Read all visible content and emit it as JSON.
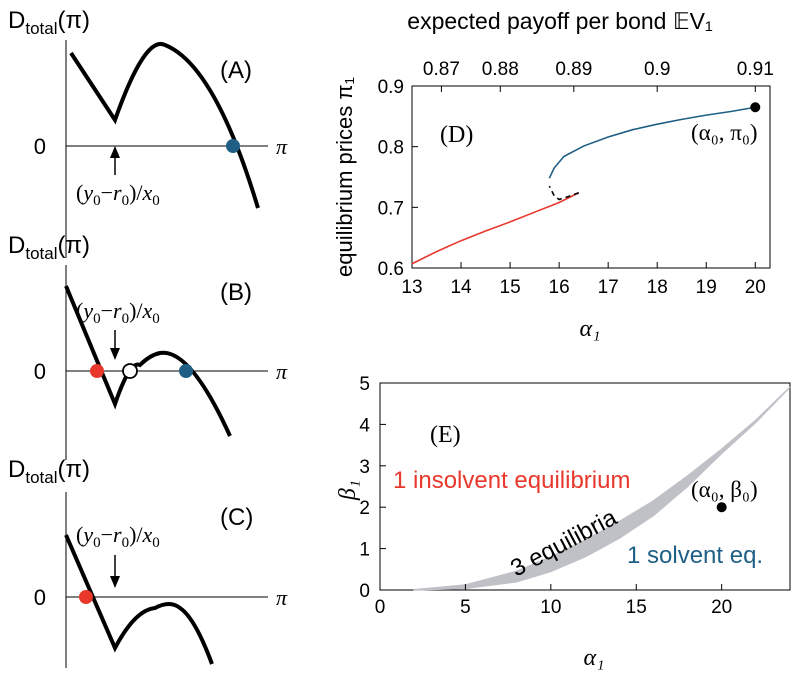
{
  "panels": {
    "A": {
      "label": "(A)",
      "ylabel_main": "D",
      "ylabel_sub": "total",
      "ylabel_arg": "(π)",
      "zero": "0",
      "xlabel": "π",
      "annotation": {
        "y": "y",
        "y_sub": "0",
        "r": "r",
        "r_sub": "0",
        "x": "x",
        "x_sub": "0"
      }
    },
    "B": {
      "label": "(B)",
      "ylabel_main": "D",
      "ylabel_sub": "total",
      "ylabel_arg": "(π)",
      "zero": "0",
      "xlabel": "π",
      "annotation": {
        "y": "y",
        "y_sub": "0",
        "r": "r",
        "r_sub": "0",
        "x": "x",
        "x_sub": "0"
      }
    },
    "C": {
      "label": "(C)",
      "ylabel_main": "D",
      "ylabel_sub": "total",
      "ylabel_arg": "(π)",
      "zero": "0",
      "xlabel": "π",
      "annotation": {
        "y": "y",
        "y_sub": "0",
        "r": "r",
        "r_sub": "0",
        "x": "x",
        "x_sub": "0"
      }
    }
  },
  "colors": {
    "red": "#e8382c",
    "blue": "#1f5f86",
    "black": "#000000",
    "gray": "#bfc1c6"
  },
  "chart_data": [
    {
      "type": "line",
      "panel": "(D)",
      "title": "expected payoff per bond 𝔼V₁",
      "xlabel": "α₁",
      "ylabel": "equilibrium prices π₁",
      "xlim": [
        13,
        20.3
      ],
      "ylim": [
        0.6,
        0.9
      ],
      "xticks": [
        "13",
        "14",
        "15",
        "16",
        "17",
        "18",
        "19",
        "20"
      ],
      "yticks": [
        "0.6",
        "0.7",
        "0.8",
        "0.9"
      ],
      "top_ticks": [
        "0.87",
        "0.88",
        "0.89",
        "0.9",
        "0.91"
      ],
      "top_tick_positions": [
        13.6,
        14.8,
        16.3,
        18.0,
        20.0
      ],
      "series": [
        {
          "branch": "insolvent",
          "color": "#e8382c",
          "x": [
            13.0,
            13.5,
            14.0,
            14.5,
            15.0,
            15.5,
            16.0,
            16.4
          ],
          "y": [
            0.607,
            0.627,
            0.645,
            0.661,
            0.676,
            0.692,
            0.708,
            0.724
          ]
        },
        {
          "branch": "unstable",
          "color": "#000000",
          "dashed": true,
          "x": [
            16.4,
            16.2,
            16.0,
            15.9,
            15.8
          ],
          "y": [
            0.724,
            0.718,
            0.713,
            0.719,
            0.735
          ]
        },
        {
          "branch": "solvent",
          "color": "#1f5f86",
          "x": [
            15.8,
            15.9,
            16.1,
            16.5,
            17.0,
            17.5,
            18.0,
            18.5,
            19.0,
            19.5,
            20.0
          ],
          "y": [
            0.748,
            0.765,
            0.784,
            0.801,
            0.816,
            0.828,
            0.837,
            0.845,
            0.852,
            0.858,
            0.865
          ]
        }
      ],
      "point": {
        "x": 20.0,
        "y": 0.865,
        "label": "(α₀, π₀)"
      }
    },
    {
      "type": "area",
      "panel": "(E)",
      "xlabel": "α₁",
      "ylabel": "β₁",
      "xlim": [
        0,
        24
      ],
      "ylim": [
        0,
        5
      ],
      "xticks": [
        "0",
        "5",
        "10",
        "15",
        "20"
      ],
      "yticks": [
        "0",
        "1",
        "2",
        "3",
        "4",
        "5"
      ],
      "band_upper": {
        "x": [
          2,
          5,
          8,
          10,
          12,
          14,
          16,
          18,
          20,
          22,
          24
        ],
        "y": [
          0.005,
          0.12,
          0.45,
          0.8,
          1.2,
          1.65,
          2.15,
          2.75,
          3.4,
          4.1,
          4.9
        ]
      },
      "band_lower": {
        "x": [
          2,
          5,
          8,
          10,
          12,
          14,
          16,
          18,
          20,
          22,
          24
        ],
        "y": [
          0.0,
          0.04,
          0.2,
          0.45,
          0.8,
          1.25,
          1.8,
          2.5,
          3.3,
          4.05,
          4.9
        ]
      },
      "regions": {
        "insolvent": "1 insolvent equilibrium",
        "multiple": "3 equilibria",
        "solvent": "1 solvent eq."
      },
      "point": {
        "x": 20.0,
        "y": 2.0,
        "label": "(α₀, β₀)"
      }
    }
  ]
}
